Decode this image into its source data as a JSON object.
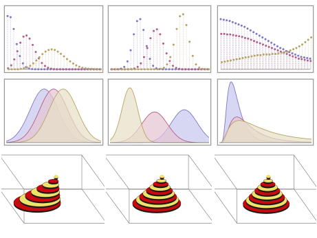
{
  "colors": {
    "series1": "#7b78c8",
    "series2": "#b35c8a",
    "series3": "#b9a262",
    "fill1": "#c9c8ee",
    "fill2": "#e4c5d3",
    "fill3": "#e8e1c6",
    "ring_red": "#c80a10",
    "ring_yellow": "#ece36a",
    "box_line": "#8a8a8a"
  },
  "chart_data": [
    {
      "type": "scatter",
      "style": "stem",
      "x_range": [
        0,
        30
      ],
      "y_range": [
        0,
        0.3
      ],
      "series": [
        {
          "values": [
            0.271,
            0.265,
            0.205,
            0.128,
            0.067,
            0.03,
            0.011,
            0.004,
            0.001,
            0,
            0,
            0,
            0,
            0,
            0,
            0,
            0,
            0,
            0,
            0,
            0,
            0,
            0,
            0,
            0,
            0,
            0,
            0,
            0,
            0,
            0
          ]
        },
        {
          "values": [
            0.005,
            0.02,
            0.05,
            0.092,
            0.135,
            0.166,
            0.172,
            0.156,
            0.124,
            0.088,
            0.056,
            0.032,
            0.017,
            0.008,
            0.003,
            0.001,
            0,
            0,
            0,
            0,
            0,
            0,
            0,
            0,
            0,
            0,
            0,
            0,
            0,
            0,
            0
          ]
        },
        {
          "values": [
            0,
            0,
            0,
            0,
            0.002,
            0.005,
            0.01,
            0.018,
            0.03,
            0.045,
            0.061,
            0.077,
            0.09,
            0.098,
            0.101,
            0.098,
            0.09,
            0.079,
            0.066,
            0.052,
            0.04,
            0.029,
            0.02,
            0.013,
            0.008,
            0.005,
            0.003,
            0.002,
            0.001,
            0,
            0
          ]
        }
      ]
    },
    {
      "type": "scatter",
      "style": "stem",
      "x_range": [
        0,
        30
      ],
      "y_range": [
        0,
        0.3
      ],
      "series": [
        {
          "values": [
            0,
            0,
            0,
            0.003,
            0.012,
            0.04,
            0.097,
            0.178,
            0.245,
            0.255,
            0.2,
            0.118,
            0.053,
            0.018,
            0.005,
            0.001,
            0,
            0,
            0,
            0,
            0,
            0,
            0,
            0,
            0,
            0,
            0,
            0,
            0,
            0,
            0
          ]
        },
        {
          "values": [
            0,
            0,
            0,
            0,
            0,
            0,
            0.001,
            0.004,
            0.012,
            0.03,
            0.062,
            0.108,
            0.158,
            0.195,
            0.203,
            0.178,
            0.131,
            0.081,
            0.042,
            0.018,
            0.007,
            0.002,
            0,
            0,
            0,
            0,
            0,
            0,
            0,
            0,
            0
          ]
        },
        {
          "values": [
            0,
            0,
            0,
            0,
            0,
            0,
            0,
            0,
            0,
            0,
            0,
            0,
            0,
            0,
            0,
            0.002,
            0.008,
            0.025,
            0.062,
            0.125,
            0.205,
            0.27,
            0.28,
            0.225,
            0.14,
            0.068,
            0.025,
            0.008,
            0.002,
            0,
            0
          ]
        }
      ]
    },
    {
      "type": "scatter",
      "style": "stem",
      "x_range": [
        0,
        30
      ],
      "y_range": [
        0,
        0.1
      ],
      "series": [
        {
          "values": [
            0.085,
            0.084,
            0.083,
            0.082,
            0.08,
            0.078,
            0.076,
            0.074,
            0.072,
            0.069,
            0.066,
            0.063,
            0.06,
            0.057,
            0.054,
            0.051,
            0.048,
            0.045,
            0.042,
            0.039,
            0.036,
            0.034,
            0.031,
            0.029,
            0.027,
            0.025,
            0.023,
            0.021,
            0.02,
            0.019,
            0.018
          ]
        },
        {
          "values": [
            0.06,
            0.06,
            0.059,
            0.059,
            0.058,
            0.057,
            0.056,
            0.055,
            0.053,
            0.052,
            0.05,
            0.048,
            0.046,
            0.044,
            0.042,
            0.04,
            0.038,
            0.036,
            0.034,
            0.032,
            0.03,
            0.028,
            0.026,
            0.024,
            0.022,
            0.02,
            0.018,
            0.017,
            0.016,
            0.015,
            0.014
          ]
        },
        {
          "values": [
            0.012,
            0.013,
            0.014,
            0.015,
            0.016,
            0.017,
            0.018,
            0.019,
            0.02,
            0.021,
            0.022,
            0.023,
            0.024,
            0.024,
            0.025,
            0.025,
            0.025,
            0.026,
            0.026,
            0.027,
            0.028,
            0.029,
            0.03,
            0.032,
            0.034,
            0.036,
            0.039,
            0.042,
            0.046,
            0.05,
            0.054
          ]
        }
      ]
    },
    {
      "type": "area",
      "x_range": [
        0,
        10
      ],
      "y_range": [
        0,
        0.45
      ],
      "series": [
        {
          "kind": "normal",
          "mu": 4.0,
          "sigma": 1.5,
          "amplitude": 0.4
        },
        {
          "kind": "normal",
          "mu": 5.0,
          "sigma": 1.5,
          "amplitude": 0.4
        },
        {
          "kind": "normal",
          "mu": 6.0,
          "sigma": 1.5,
          "amplitude": 0.4
        }
      ]
    },
    {
      "type": "area",
      "x_range": [
        0,
        10
      ],
      "y_range": [
        0,
        0.55
      ],
      "series": [
        {
          "kind": "normal",
          "mu": 7.5,
          "sigma": 1.3,
          "amplitude": 0.3
        },
        {
          "kind": "normal",
          "mu": 4.5,
          "sigma": 1.3,
          "amplitude": 0.28
        },
        {
          "kind": "normal",
          "mu": 2.0,
          "sigma": 0.8,
          "amplitude": 0.5
        }
      ]
    },
    {
      "type": "area",
      "x_range": [
        0,
        10
      ],
      "y_range": [
        0,
        0.9
      ],
      "series": [
        {
          "kind": "lognormal",
          "mu": 0.5,
          "sigma": 0.5,
          "amplitude": 0.8
        },
        {
          "kind": "lognormal",
          "mu": 1.0,
          "sigma": 0.6,
          "amplitude": 0.32
        },
        {
          "kind": "lognormal",
          "mu": 1.4,
          "sigma": 0.8,
          "amplitude": 0.24
        }
      ]
    },
    {
      "type": "surface3d",
      "rings": 8,
      "center_shift": [
        -0.42,
        -0.35
      ],
      "tilt": "left"
    },
    {
      "type": "surface3d",
      "rings": 9,
      "center_shift": [
        -0.05,
        -0.32
      ],
      "tilt": "none"
    },
    {
      "type": "surface3d",
      "rings": 9,
      "center_shift": [
        -0.12,
        -0.28
      ],
      "tilt": "right"
    }
  ]
}
